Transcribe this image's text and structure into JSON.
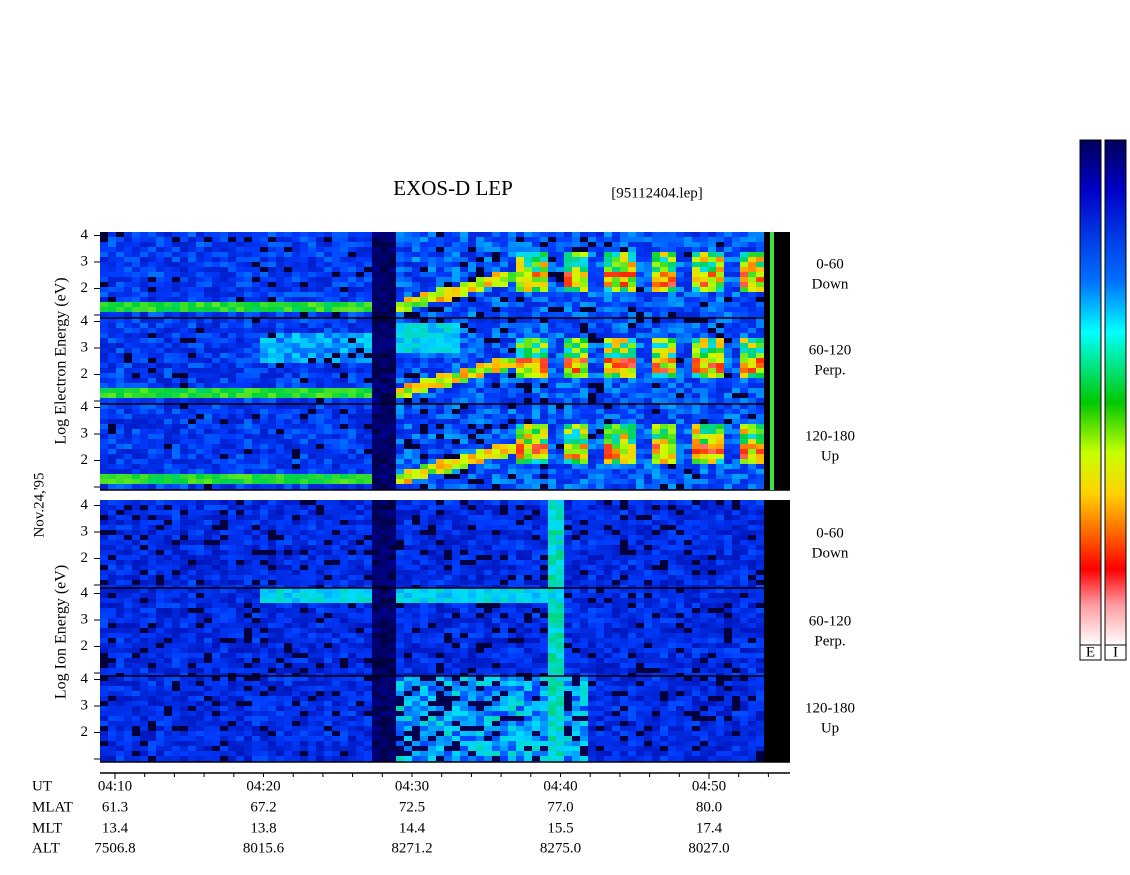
{
  "header": {
    "title": "EXOS-D LEP",
    "file": "[95112404.lep]"
  },
  "date": "Nov.24,'95",
  "energy_ticks": [
    "4",
    "3",
    "2"
  ],
  "electron": {
    "axis_label": "Log Electron Energy (eV)",
    "panels": [
      {
        "range": "0-60",
        "direction": "Down"
      },
      {
        "range": "60-120",
        "direction": "Perp."
      },
      {
        "range": "120-180",
        "direction": "Up"
      }
    ]
  },
  "ion": {
    "axis_label": "Log Ion Energy (eV)",
    "panels": [
      {
        "range": "0-60",
        "direction": "Down"
      },
      {
        "range": "60-120",
        "direction": "Perp."
      },
      {
        "range": "120-180",
        "direction": "Up"
      }
    ]
  },
  "time_axis": {
    "rows": [
      {
        "name": "UT",
        "values": [
          "04:10",
          "04:20",
          "04:30",
          "04:40",
          "04:50"
        ]
      },
      {
        "name": "MLAT",
        "values": [
          "61.3",
          "67.2",
          "72.5",
          "77.0",
          "80.0"
        ]
      },
      {
        "name": "MLT",
        "values": [
          "13.4",
          "13.8",
          "14.4",
          "15.5",
          "17.4"
        ]
      },
      {
        "name": "ALT",
        "values": [
          "7506.8",
          "8015.6",
          "8271.2",
          "8275.0",
          "8027.0"
        ]
      }
    ]
  },
  "colorbars": [
    "E",
    "I"
  ]
}
